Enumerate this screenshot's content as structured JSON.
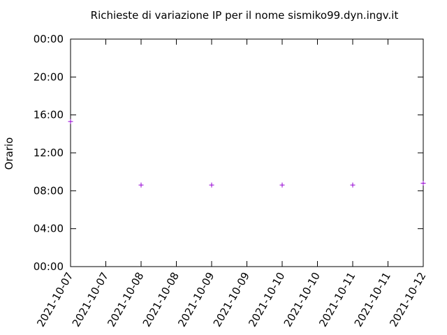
{
  "chart_data": {
    "type": "scatter",
    "title": "Richieste di variazione IP per il nome sismiko99.dyn.ingv.it",
    "y_label": "Orario",
    "series": [
      {
        "color": "#9400d3",
        "x": [
          7,
          8,
          9,
          10,
          11,
          12
        ],
        "values": [
          15.3,
          8.6,
          8.6,
          8.6,
          8.6,
          8.8
        ]
      }
    ],
    "xlim": [
      7,
      12
    ],
    "xticks": [
      {
        "value": 7,
        "label": "2021-10-07"
      },
      {
        "value": 7.5,
        "label": "2021-10-07"
      },
      {
        "value": 8,
        "label": "2021-10-08"
      },
      {
        "value": 8.5,
        "label": "2021-10-08"
      },
      {
        "value": 9,
        "label": "2021-10-09"
      },
      {
        "value": 9.5,
        "label": "2021-10-09"
      },
      {
        "value": 10,
        "label": "2021-10-10"
      },
      {
        "value": 10.5,
        "label": "2021-10-10"
      },
      {
        "value": 11,
        "label": "2021-10-11"
      },
      {
        "value": 11.5,
        "label": "2021-10-11"
      },
      {
        "value": 12,
        "label": "2021-10-12"
      }
    ],
    "ylim": [
      0,
      24
    ],
    "yticks": [
      {
        "value": 0,
        "label": "00:00"
      },
      {
        "value": 4,
        "label": "04:00"
      },
      {
        "value": 8,
        "label": "08:00"
      },
      {
        "value": 12,
        "label": "12:00"
      },
      {
        "value": 16,
        "label": "16:00"
      },
      {
        "value": 20,
        "label": "20:00"
      },
      {
        "value": 24,
        "label": "00:00"
      }
    ]
  }
}
